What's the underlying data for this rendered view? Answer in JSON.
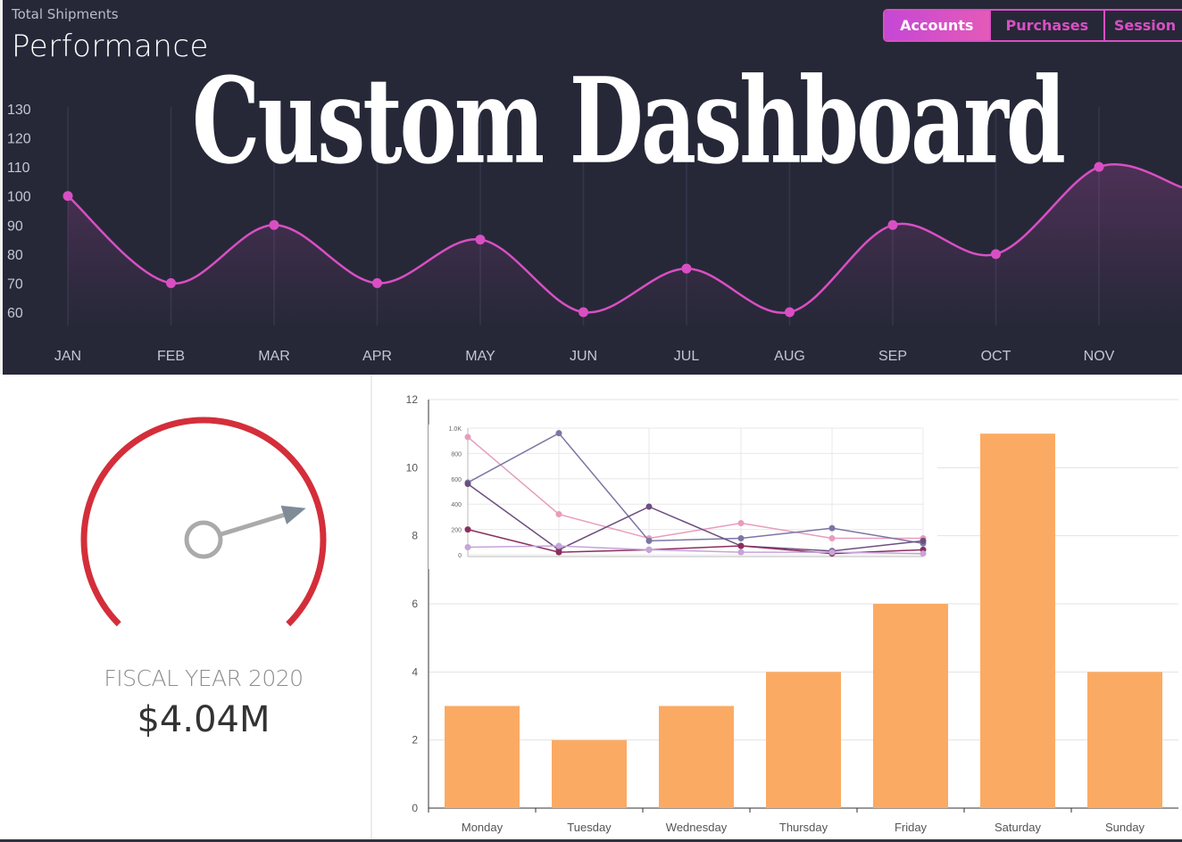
{
  "header": {
    "subtitle": "Total Shipments",
    "title": "Performance",
    "tabs": [
      {
        "label": "Accounts",
        "active": true
      },
      {
        "label": "Purchases",
        "active": false
      },
      {
        "label": "Session",
        "active": false
      }
    ]
  },
  "banner": "Custom Dashboard",
  "colors": {
    "accent": "#d94fc3",
    "bar": "#fbaa63",
    "gauge": "#d42e3a"
  },
  "gauge": {
    "label": "FISCAL YEAR 2020",
    "value": "$4.04M",
    "level": 0.77
  },
  "chart_data": [
    {
      "type": "line",
      "x": [
        "JAN",
        "FEB",
        "MAR",
        "APR",
        "MAY",
        "JUN",
        "JUL",
        "AUG",
        "SEP",
        "OCT",
        "NOV"
      ],
      "values": [
        100,
        70,
        90,
        70,
        85,
        60,
        75,
        60,
        90,
        80,
        110
      ],
      "yticks": [
        60,
        70,
        80,
        90,
        100,
        110,
        120,
        130
      ],
      "ylim": [
        60,
        130
      ]
    },
    {
      "type": "bar",
      "categories": [
        "Monday",
        "Tuesday",
        "Wednesday",
        "Thursday",
        "Friday",
        "Saturday",
        "Sunday"
      ],
      "values": [
        3,
        2,
        3,
        4,
        6,
        11,
        4
      ],
      "yticks": [
        0,
        2,
        4,
        6,
        8,
        10,
        12
      ],
      "ylim": [
        0,
        12
      ]
    },
    {
      "type": "line",
      "yticks": [
        "0",
        "200",
        "400",
        "600",
        "800",
        "1.0K"
      ],
      "ylim": [
        0,
        1000
      ],
      "series": [
        {
          "color": "#e89cbc",
          "values": [
            930,
            320,
            130,
            250,
            130,
            130
          ]
        },
        {
          "color": "#7a76a4",
          "values": [
            570,
            960,
            110,
            130,
            210,
            90
          ]
        },
        {
          "color": "#6d4f7e",
          "values": [
            560,
            40,
            380,
            70,
            30,
            110
          ]
        },
        {
          "color": "#8c2e5c",
          "values": [
            200,
            20,
            40,
            70,
            10,
            40
          ]
        },
        {
          "color": "#c7a3d9",
          "values": [
            60,
            70,
            40,
            20,
            20,
            10
          ]
        }
      ]
    }
  ]
}
